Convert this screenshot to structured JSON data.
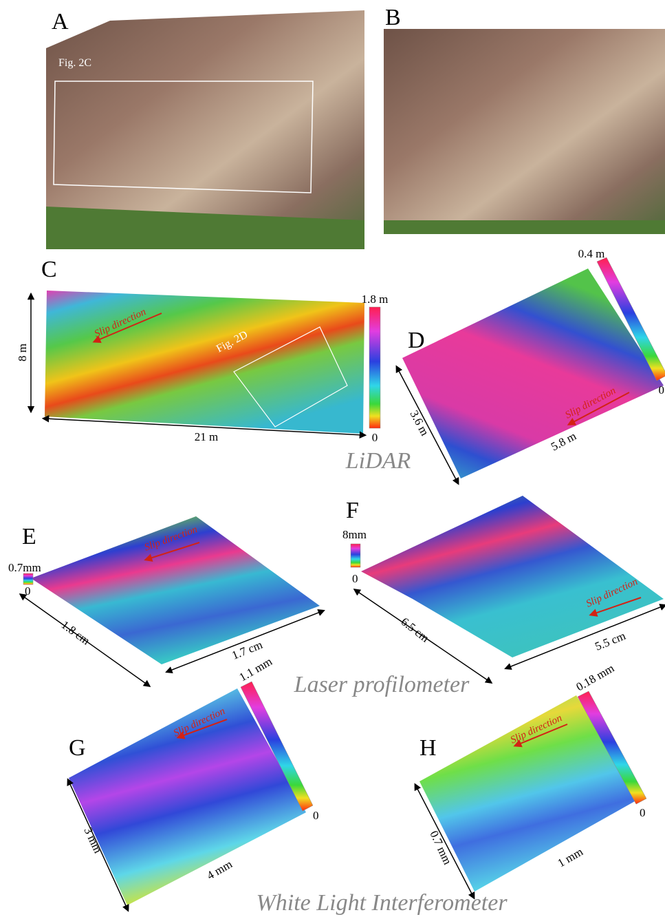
{
  "panels": [
    {
      "label": "A",
      "box_label": "Fig. 2C"
    },
    {
      "label": "B"
    },
    {
      "label": "C",
      "colorbar_max": "1.8 m",
      "colorbar_min": "0",
      "height": "8 m",
      "width": "21 m",
      "box_label": "Fig. 2D",
      "arrow_label": "Slip direction"
    },
    {
      "label": "D",
      "colorbar_max": "0.4 m",
      "colorbar_min": "0",
      "height": "3.6 m",
      "width": "5.8 m",
      "arrow_label": "Slip direction"
    },
    {
      "label": "E",
      "colorbar_max": "0.7mm",
      "colorbar_min": "0",
      "height": "1.8 cm",
      "width": "1.7 cm",
      "arrow_label": "Slip direction"
    },
    {
      "label": "F",
      "colorbar_max": "8mm",
      "colorbar_min": "0",
      "height": "6.5 cm",
      "width": "5.5 cm",
      "arrow_label": "Slip direction"
    },
    {
      "label": "G",
      "colorbar_max": "1.1 mm",
      "colorbar_min": "0",
      "height": "3 mm",
      "width": "4 mm",
      "arrow_label": "Slip direction"
    },
    {
      "label": "H",
      "colorbar_max": "0.18 mm",
      "colorbar_min": "0",
      "height": "0.7 mm",
      "width": "1 mm",
      "arrow_label": "Slip direction"
    }
  ],
  "methods": [
    "LiDAR",
    "Laser profilometer",
    "White Light Interferometer"
  ]
}
